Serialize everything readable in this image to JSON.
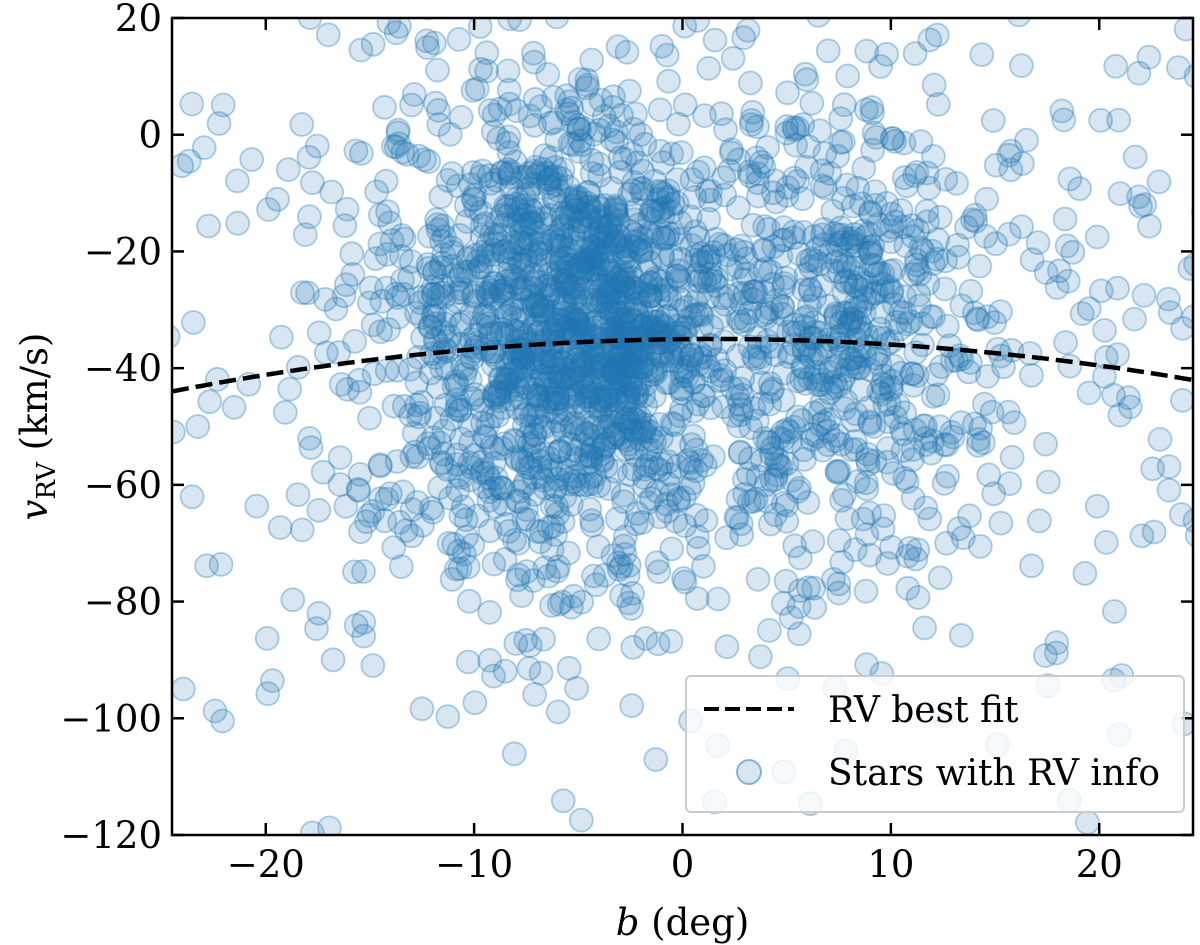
{
  "chart_data": {
    "type": "scatter",
    "title": "",
    "xlabel": "b (deg)",
    "xlabel_italic": "b",
    "xlabel_rest": " (deg)",
    "ylabel": "v_RV (km/s)",
    "ylabel_main": "v",
    "ylabel_sub": "RV",
    "ylabel_unit": " (km/s)",
    "xlim": [
      -24.5,
      24.5
    ],
    "ylim": [
      -120,
      20
    ],
    "xticks": [
      -20,
      -10,
      0,
      10,
      20
    ],
    "xtick_labels": [
      "−20",
      "−10",
      "0",
      "10",
      "20"
    ],
    "yticks": [
      20,
      0,
      -20,
      -40,
      -60,
      -80,
      -100,
      -120
    ],
    "ytick_labels": [
      "20",
      "0",
      "−20",
      "−40",
      "−60",
      "−80",
      "−100",
      "−120"
    ],
    "legend_position": "lower-right",
    "series": [
      {
        "name": "RV best fit",
        "kind": "line",
        "style": "dashed",
        "color": "#000000",
        "model": "quadratic",
        "coefficients": {
          "a": -0.0133,
          "b0": 1.5,
          "c": -35.0
        },
        "x": [
          -24.5,
          -20,
          -15,
          -10,
          -5,
          0,
          1.5,
          5,
          10,
          15,
          20,
          24.5
        ],
        "y": [
          -43.0,
          -40.4,
          -37.8,
          -35.9,
          -35.0,
          -35.0,
          -35.0,
          -35.2,
          -36.1,
          -38.0,
          -40.3,
          -42.8
        ]
      },
      {
        "name": "Stars with RV info",
        "kind": "scatter",
        "color": "#1f77b4",
        "alpha": 0.18,
        "n_points": 2600,
        "distribution": {
          "components": [
            {
              "weight": 0.3,
              "b_mean": -3.5,
              "b_sd": 3.0,
              "v_mean": -35,
              "v_sd": 17
            },
            {
              "weight": 0.2,
              "b_mean": -8.5,
              "b_sd": 3.0,
              "v_mean": -30,
              "v_sd": 22
            },
            {
              "weight": 0.17,
              "b_mean": 8.0,
              "b_sd": 2.8,
              "v_mean": -33,
              "v_sd": 20
            },
            {
              "weight": 0.2,
              "b_mean": 0,
              "b_sd": 13,
              "v_mean": -35,
              "v_sd": 30
            },
            {
              "weight": 0.13,
              "b_mean": 0,
              "b_sd": 26,
              "v_mean": -38,
              "v_sd": 42
            }
          ]
        }
      }
    ]
  }
}
